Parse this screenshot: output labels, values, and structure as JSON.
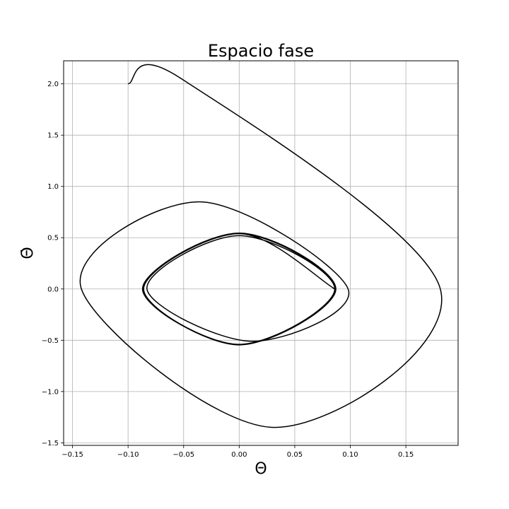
{
  "chart_data": {
    "type": "line",
    "title": "Espacio fase",
    "xlabel": "Θ",
    "ylabel": "Θ̇",
    "xlim": [
      -0.158,
      0.197
    ],
    "ylim": [
      -1.525,
      2.225
    ],
    "xticks": [
      -0.15,
      -0.1,
      -0.05,
      0.0,
      0.05,
      0.1,
      0.15
    ],
    "xtick_labels": [
      "−0.15",
      "−0.10",
      "−0.05",
      "0.00",
      "0.05",
      "0.10",
      "0.15"
    ],
    "yticks": [
      -1.5,
      -1.0,
      -0.5,
      0.0,
      0.5,
      1.0,
      1.5,
      2.0
    ],
    "ytick_labels": [
      "−1.5",
      "−1.0",
      "−0.5",
      "0.0",
      "0.5",
      "1.0",
      "1.5",
      "2.0"
    ],
    "grid": true,
    "line_color": "#000000",
    "grid_color": "#b0b0b0",
    "series": [
      {
        "anchors": [
          {
            "x": -0.1,
            "y": 2.0
          },
          {
            "x": -0.052,
            "y": 2.05
          },
          {
            "x": 0.181,
            "y": 0.0
          },
          {
            "x": 0.032,
            "y": -1.35
          },
          {
            "x": -0.142,
            "y": 0.0
          },
          {
            "x": -0.036,
            "y": 0.85
          },
          {
            "x": 0.098,
            "y": 0.0
          },
          {
            "x": 0.012,
            "y": -0.51
          },
          {
            "x": -0.083,
            "y": 0.0
          },
          {
            "x": 0.0,
            "y": 0.52
          },
          {
            "x": 0.086,
            "y": 0.0
          },
          {
            "x": 0.0,
            "y": -0.54
          },
          {
            "x": -0.087,
            "y": 0.0
          },
          {
            "x": 0.0,
            "y": 0.545
          },
          {
            "x": 0.087,
            "y": 0.0
          },
          {
            "x": 0.0,
            "y": -0.545
          },
          {
            "x": -0.086,
            "y": 0.0
          },
          {
            "x": 0.0,
            "y": 0.54
          },
          {
            "x": 0.086,
            "y": 0.0
          },
          {
            "x": 0.0,
            "y": -0.54
          },
          {
            "x": -0.086,
            "y": 0.0
          },
          {
            "x": 0.0,
            "y": 0.54
          },
          {
            "x": 0.086,
            "y": 0.0
          }
        ]
      }
    ]
  }
}
